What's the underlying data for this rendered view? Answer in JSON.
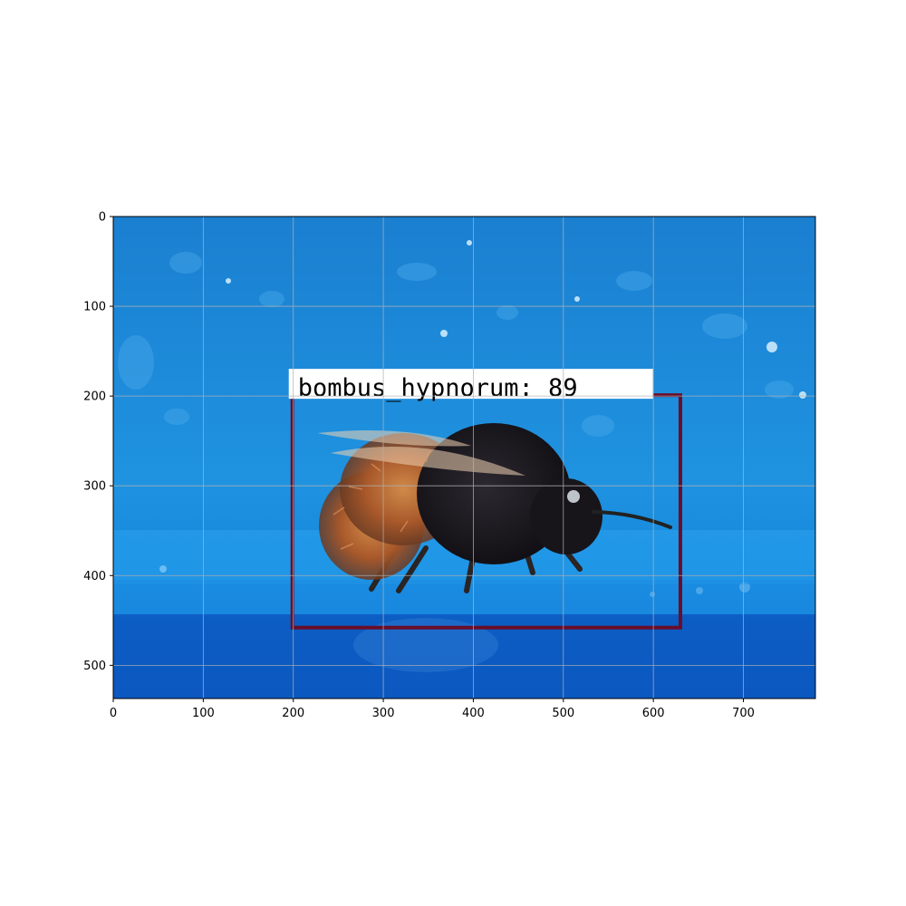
{
  "figure": {
    "x_ticks": [
      "0",
      "100",
      "200",
      "300",
      "400",
      "500",
      "600",
      "700"
    ],
    "y_ticks": [
      "0",
      "100",
      "200",
      "300",
      "400",
      "500"
    ],
    "x_range": [
      0,
      780
    ],
    "y_range": [
      0,
      537
    ],
    "grid": true
  },
  "photo": {
    "subject": "bumblebee on blue surface",
    "background_color": "#1A8AD6",
    "bee_colors": {
      "body": "#1d1a1c",
      "thorax_fur": "#b8692e",
      "legs": "#2a2424"
    }
  },
  "detection": {
    "label_text": "bombus_hypnorum: 89",
    "box_color": "#6a0d2a",
    "label_bg": "#ffffff",
    "box": {
      "x_min": 199,
      "y_min": 199,
      "x_max": 630,
      "y_max": 458
    }
  }
}
